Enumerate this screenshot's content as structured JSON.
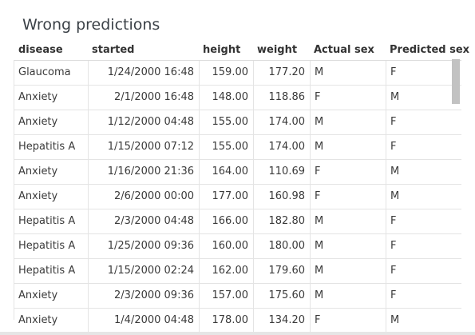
{
  "panel": {
    "title": "Wrong predictions"
  },
  "table": {
    "columns": [
      "disease",
      "started",
      "height",
      "weight",
      "Actual sex",
      "Predicted sex"
    ],
    "rows": [
      [
        "Glaucoma",
        "1/24/2000 16:48",
        "159.00",
        "177.20",
        "M",
        "F"
      ],
      [
        "Anxiety",
        "2/1/2000 16:48",
        "148.00",
        "118.86",
        "F",
        "M"
      ],
      [
        "Anxiety",
        "1/12/2000 04:48",
        "155.00",
        "174.00",
        "M",
        "F"
      ],
      [
        "Hepatitis A",
        "1/15/2000 07:12",
        "155.00",
        "174.00",
        "M",
        "F"
      ],
      [
        "Anxiety",
        "1/16/2000 21:36",
        "164.00",
        "110.69",
        "F",
        "M"
      ],
      [
        "Anxiety",
        "2/6/2000 00:00",
        "177.00",
        "160.98",
        "F",
        "M"
      ],
      [
        "Hepatitis A",
        "2/3/2000 04:48",
        "166.00",
        "182.80",
        "M",
        "F"
      ],
      [
        "Hepatitis A",
        "1/25/2000 09:36",
        "160.00",
        "180.00",
        "M",
        "F"
      ],
      [
        "Hepatitis A",
        "1/15/2000 02:24",
        "162.00",
        "179.60",
        "M",
        "F"
      ],
      [
        "Anxiety",
        "2/3/2000 09:36",
        "157.00",
        "175.60",
        "M",
        "F"
      ],
      [
        "Anxiety",
        "1/4/2000 04:48",
        "178.00",
        "134.20",
        "F",
        "M"
      ]
    ]
  },
  "colors": {
    "grid_line": "#e4e4e4",
    "scrollbar_thumb": "#c2c2c2"
  }
}
